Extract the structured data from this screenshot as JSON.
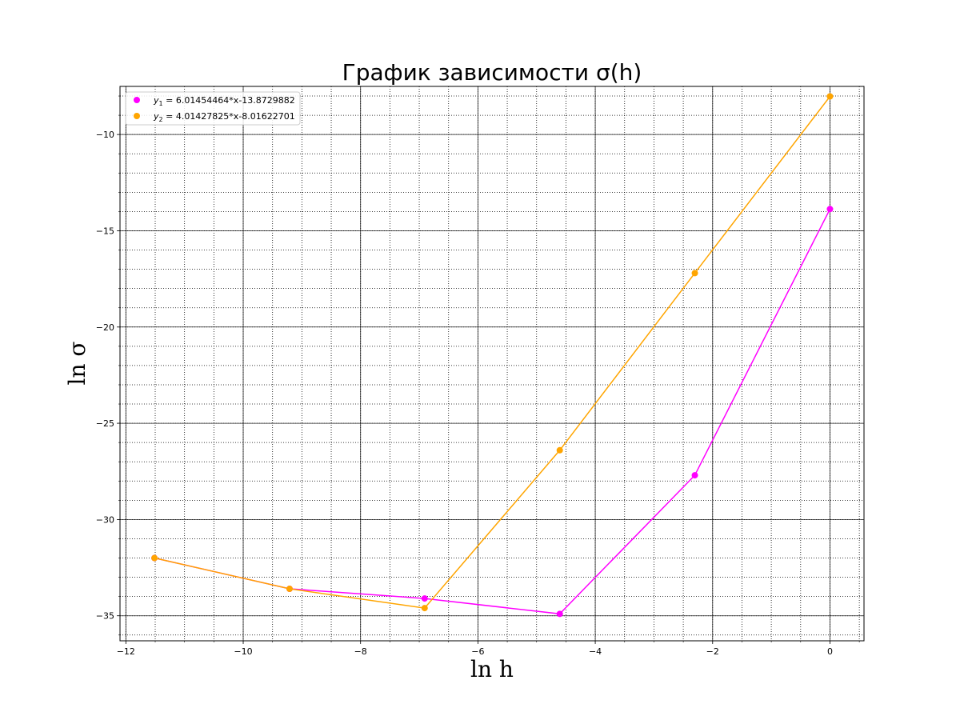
{
  "chart_data": {
    "type": "line",
    "title": "График зависимости σ(h)",
    "xlabel": "ln h",
    "ylabel": "ln σ",
    "xlim": [
      -12.1,
      0.58
    ],
    "ylim": [
      -36.3,
      -7.5
    ],
    "x_ticks": [
      -12,
      -10,
      -8,
      -6,
      -4,
      -2,
      0
    ],
    "x_tick_labels": [
      "−12",
      "−10",
      "−8",
      "−6",
      "−4",
      "−2",
      "0"
    ],
    "y_ticks": [
      -35,
      -30,
      -25,
      -20,
      -15,
      -10
    ],
    "y_tick_labels": [
      "−35",
      "−30",
      "−25",
      "−20",
      "−15",
      "−10"
    ],
    "grid": true,
    "legend_position": "top-left",
    "x": [
      -11.513,
      -9.21,
      -6.908,
      -4.605,
      -2.303,
      0.0
    ],
    "series": [
      {
        "name": "y1 = 6.01454464*x-13.8729882",
        "legend_var": "y",
        "legend_sub": "1",
        "legend_rest": " = 6.01454464*x-13.8729882",
        "color": "#ff00ff",
        "values": [
          -32.0,
          -33.6,
          -34.1,
          -34.9,
          -27.7,
          -13.87
        ]
      },
      {
        "name": "y2 = 4.01427825*x-8.01622701",
        "legend_var": "y",
        "legend_sub": "2",
        "legend_rest": " = 4.01427825*x-8.01622701",
        "color": "#ffa500",
        "values": [
          -32.0,
          -33.6,
          -34.6,
          -26.4,
          -17.2,
          -8.02
        ]
      }
    ]
  }
}
